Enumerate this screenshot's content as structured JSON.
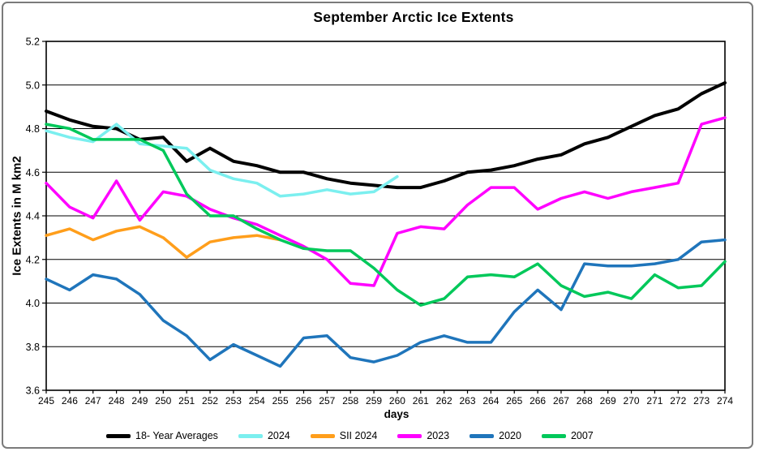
{
  "window": {
    "frame_border_color": "#7b7b7b",
    "background": "#ffffff"
  },
  "chart_data": {
    "type": "line",
    "title": "September Arctic Ice Extents",
    "xlabel": "days",
    "ylabel": "Ice Extents in M km2",
    "x": [
      245,
      246,
      247,
      248,
      249,
      250,
      251,
      252,
      253,
      254,
      255,
      256,
      257,
      258,
      259,
      260,
      261,
      262,
      263,
      264,
      265,
      266,
      267,
      268,
      269,
      270,
      271,
      272,
      273,
      274
    ],
    "xlim": [
      245,
      274
    ],
    "ylim": [
      3.6,
      5.2
    ],
    "ytick_step": 0.2,
    "grid": "horizontal",
    "legend_position": "bottom",
    "axis_color": "#000000",
    "series": [
      {
        "name": "18- Year Averages",
        "color": "#000000",
        "values": [
          4.88,
          4.84,
          4.81,
          4.8,
          4.75,
          4.76,
          4.65,
          4.71,
          4.65,
          4.63,
          4.6,
          4.6,
          4.57,
          4.55,
          4.54,
          4.53,
          4.53,
          4.56,
          4.6,
          4.61,
          4.63,
          4.66,
          4.68,
          4.73,
          4.76,
          4.81,
          4.86,
          4.89,
          4.96,
          5.01
        ]
      },
      {
        "name": "2024",
        "color": "#7BEFEF",
        "values": [
          4.79,
          4.76,
          4.74,
          4.82,
          4.73,
          4.72,
          4.71,
          4.61,
          4.57,
          4.55,
          4.49,
          4.5,
          4.52,
          4.5,
          4.51,
          4.58
        ]
      },
      {
        "name": "SII 2024",
        "color": "#FF9E1B",
        "values": [
          4.31,
          4.34,
          4.29,
          4.33,
          4.35,
          4.3,
          4.21,
          4.28,
          4.3,
          4.31,
          4.29
        ]
      },
      {
        "name": "2023",
        "color": "#FF00FF",
        "values": [
          4.55,
          4.44,
          4.39,
          4.56,
          4.38,
          4.51,
          4.49,
          4.43,
          4.39,
          4.36,
          4.31,
          4.26,
          4.2,
          4.09,
          4.08,
          4.32,
          4.35,
          4.34,
          4.45,
          4.53,
          4.53,
          4.43,
          4.48,
          4.51,
          4.48,
          4.51,
          4.53,
          4.55,
          4.82,
          4.85
        ]
      },
      {
        "name": "2020",
        "color": "#1F75BB",
        "values": [
          4.11,
          4.06,
          4.13,
          4.11,
          4.04,
          3.92,
          3.85,
          3.74,
          3.81,
          3.76,
          3.71,
          3.84,
          3.85,
          3.75,
          3.73,
          3.76,
          3.82,
          3.85,
          3.82,
          3.82,
          3.96,
          4.06,
          3.97,
          4.18,
          4.17,
          4.17,
          4.18,
          4.2,
          4.28,
          4.29
        ]
      },
      {
        "name": "2007",
        "color": "#00C85A",
        "values": [
          4.82,
          4.8,
          4.75,
          4.75,
          4.75,
          4.7,
          4.5,
          4.4,
          4.4,
          4.34,
          4.29,
          4.25,
          4.24,
          4.24,
          4.16,
          4.06,
          3.99,
          4.02,
          4.12,
          4.13,
          4.12,
          4.18,
          4.08,
          4.03,
          4.05,
          4.02,
          4.13,
          4.07,
          4.08,
          4.19
        ]
      }
    ]
  }
}
